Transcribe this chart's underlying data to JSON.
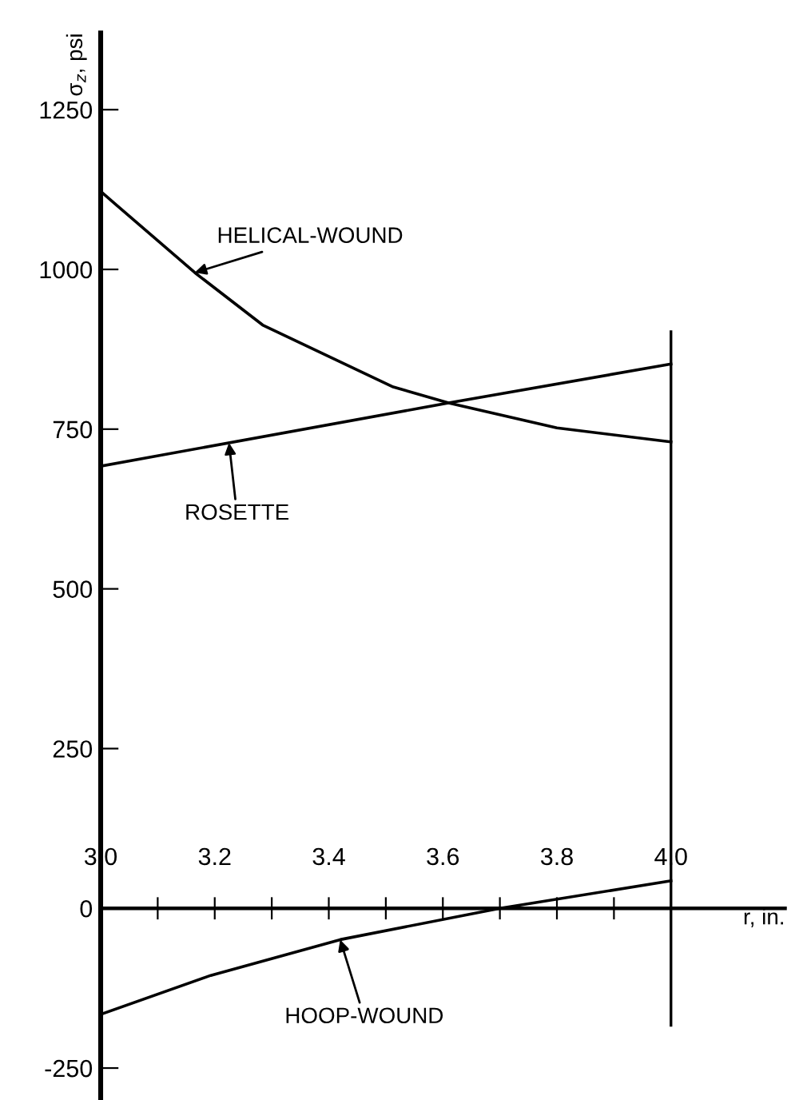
{
  "chart_data": {
    "type": "line",
    "xlabel": "r, in.",
    "ylabel": "σ$_{z}$, psi",
    "series": [
      {
        "name": "HELICAL-WOUND",
        "color": "#000000",
        "x": [
          3.0,
          3.165,
          3.284,
          3.513,
          3.61,
          3.8,
          4.0
        ],
        "values": [
          1122,
          995,
          913,
          816,
          791,
          752,
          730
        ]
      },
      {
        "name": "ROSETTE",
        "color": "#000000",
        "x": [
          3.0,
          3.61,
          4.0
        ],
        "values": [
          692,
          791,
          852
        ]
      },
      {
        "name": "HOOP-WOUND",
        "color": "#000000",
        "x": [
          3.0,
          3.193,
          3.42,
          3.7,
          4.0
        ],
        "values": [
          -166,
          -105,
          -49,
          0,
          43
        ]
      }
    ],
    "xlim": [
      3.0,
      4.2
    ],
    "ylim": [
      -300,
      1370
    ],
    "xticks": [
      {
        "value": 3.0,
        "label": "3.0"
      },
      {
        "value": 3.1,
        "label": null
      },
      {
        "value": 3.2,
        "label": "3.2"
      },
      {
        "value": 3.3,
        "label": null
      },
      {
        "value": 3.4,
        "label": "3.4"
      },
      {
        "value": 3.5,
        "label": null
      },
      {
        "value": 3.6,
        "label": "3.6"
      },
      {
        "value": 3.7,
        "label": null
      },
      {
        "value": 3.8,
        "label": "3.8"
      },
      {
        "value": 3.9,
        "label": null
      },
      {
        "value": 4.0,
        "label": "4.0"
      }
    ],
    "yticks": [
      -250,
      0,
      250,
      500,
      750,
      1000,
      1250
    ],
    "ref_lines": [
      {
        "axis": "x",
        "value": 4.0,
        "label": null
      }
    ],
    "grid": false,
    "legend": false,
    "marker": "none",
    "line_style": "solid"
  }
}
